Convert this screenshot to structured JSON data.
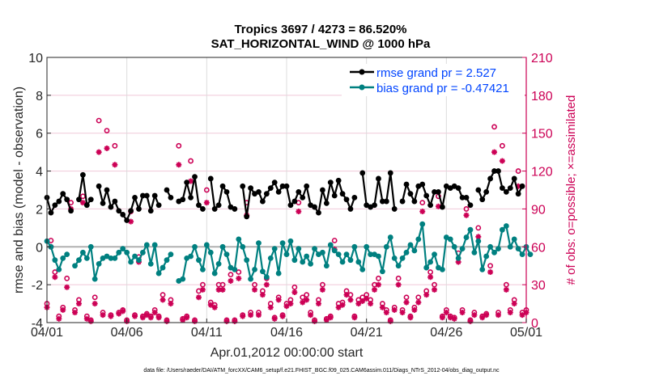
{
  "chart_data": {
    "type": "line",
    "title": [
      "Tropics 3697 / 4273 = 86.520%",
      "SAT_HORIZONTAL_WIND @ 1000 hPa"
    ],
    "xlabel": "Apr.01,2012 00:00:00 start",
    "ylabel": "rmse and bias (model - observation)",
    "ylabel_right": "# of obs: o=possible; ×=assimilated",
    "xlim_days": [
      0,
      30
    ],
    "x_ticks": [
      {
        "day": 0,
        "label": "04/01"
      },
      {
        "day": 5,
        "label": "04/06"
      },
      {
        "day": 10,
        "label": "04/11"
      },
      {
        "day": 15,
        "label": "04/16"
      },
      {
        "day": 20,
        "label": "04/21"
      },
      {
        "day": 25,
        "label": "04/26"
      },
      {
        "day": 30,
        "label": "05/01"
      }
    ],
    "ylim": [
      -4,
      10
    ],
    "y_ticks": [
      -4,
      -2,
      0,
      2,
      4,
      6,
      8,
      10
    ],
    "ylim_right": [
      0,
      210
    ],
    "y_ticks_right": [
      0,
      30,
      60,
      90,
      120,
      150,
      180,
      210
    ],
    "grid": true,
    "zero_line": true,
    "legend_position": "top-right",
    "x_step_days": 0.25,
    "series": [
      {
        "name": "rmse grand pr = 2.527",
        "color": "#000000",
        "values": [
          2.6,
          1.8,
          2.2,
          2.4,
          2.8,
          2.5,
          1.9,
          null,
          2.5,
          3.8,
          2.2,
          2.5,
          null,
          3.2,
          2.3,
          3.0,
          2.1,
          2.4,
          1.9,
          1.7,
          1.4,
          1.9,
          2.6,
          2.0,
          2.7,
          2.7,
          1.9,
          2.7,
          2.2,
          null,
          3.0,
          2.6,
          null,
          2.4,
          2.5,
          3.4,
          2.6,
          3.7,
          2.2,
          2.0,
          null,
          3.6,
          2.0,
          2.2,
          3.2,
          2.9,
          2.1,
          2.0,
          null,
          3.2,
          1.6,
          3.1,
          2.8,
          2.9,
          2.4,
          2.8,
          3.1,
          3.4,
          2.9,
          3.2,
          3.2,
          2.2,
          2.4,
          2.9,
          2.6,
          3.2,
          2.2,
          2.1,
          1.8,
          3.0,
          2.3,
          3.4,
          2.7,
          3.5,
          2.8,
          2.5,
          2.0,
          2.6,
          null,
          3.9,
          2.2,
          2.1,
          2.2,
          3.6,
          2.4,
          2.4,
          3.9,
          2.0,
          null,
          2.4,
          3.3,
          2.8,
          2.4,
          3.2,
          3.3,
          2.7,
          2.2,
          2.9,
          2.9,
          2.1,
          3.2,
          3.1,
          3.2,
          3.1,
          2.6,
          2.6,
          2.2,
          null,
          3.0,
          2.5,
          2.9,
          3.6,
          4.0,
          4.0,
          3.1,
          2.9,
          3.1,
          3.6,
          2.8,
          3.2
        ],
        "marker": "filled-circle"
      },
      {
        "name": "bias grand pr = -0.47421",
        "color": "#008080",
        "values": [
          0.3,
          0.0,
          -0.7,
          -1.2,
          -0.6,
          -0.4,
          null,
          -1.0,
          -0.7,
          -0.3,
          -0.6,
          0.0,
          -1.7,
          -0.9,
          -0.6,
          -0.5,
          -0.6,
          -0.6,
          -0.3,
          -0.1,
          -0.3,
          -0.8,
          -0.5,
          -0.7,
          -0.3,
          0.1,
          -0.9,
          0.1,
          -1.4,
          -1.1,
          -0.7,
          -0.4,
          null,
          -1.8,
          -1.7,
          -0.6,
          -0.5,
          0.0,
          -0.7,
          -1.2,
          0.1,
          -0.3,
          -1.4,
          -0.9,
          0.0,
          -0.4,
          -1.1,
          -1.2,
          0.4,
          0.0,
          -0.7,
          -1.7,
          -1.2,
          0.2,
          -1.3,
          -1.6,
          -0.6,
          -0.1,
          -1.4,
          0.2,
          -0.4,
          0.3,
          -0.7,
          -0.1,
          -0.8,
          -0.5,
          -0.9,
          -0.1,
          -0.4,
          -0.3,
          -1.0,
          0.1,
          -0.2,
          -0.4,
          -0.8,
          -0.4,
          -0.7,
          0.0,
          -0.8,
          -1.2,
          0.0,
          -0.4,
          -0.4,
          -0.5,
          -1.3,
          0.0,
          0.5,
          -0.6,
          -1.0,
          -0.6,
          -0.3,
          0.1,
          -0.2,
          0.4,
          1.2,
          -1.1,
          -0.8,
          -0.4,
          -1.1,
          -1.2,
          0.5,
          0.4,
          0.0,
          -0.6,
          -0.1,
          0.5,
          0.9,
          -0.3,
          0.3,
          -1.2,
          -0.5,
          0.0,
          -0.3,
          -0.1,
          0.9,
          1.1,
          0.0,
          0.4,
          -0.1,
          -0.4,
          0.0,
          -0.4
        ],
        "marker": "filled-circle"
      }
    ],
    "obs_counts": {
      "color": "#cc0055",
      "possible": [
        15,
        65,
        40,
        5,
        12,
        35,
        95,
        10,
        18,
        100,
        5,
        2,
        20,
        160,
        8,
        152,
        6,
        140,
        8,
        10,
        2,
        88,
        6,
        52,
        5,
        7,
        5,
        10,
        5,
        22,
        2,
        18,
        null,
        140,
        3,
        5,
        128,
        2,
        25,
        30,
        105,
        16,
        14,
        30,
        30,
        2,
        38,
        2,
        40,
        6,
        95,
        8,
        30,
        8,
        25,
        35,
        15,
        4,
        20,
        6,
        15,
        18,
        28,
        95,
        20,
        22,
        8,
        2,
        18,
        30,
        3,
        5,
        65,
        15,
        16,
        25,
        22,
        5,
        18,
        20,
        22,
        18,
        30,
        35,
        15,
        10,
        2,
        12,
        35,
        10,
        20,
        5,
        12,
        20,
        95,
        25,
        40,
        30,
        100,
        5,
        10,
        5,
        4,
        55,
        10,
        90,
        2,
        8,
        75,
        5,
        7,
        45,
        155,
        8,
        140,
        30,
        10,
        18,
        120,
        8,
        10
      ],
      "assimilated": [
        12,
        60,
        36,
        3,
        10,
        28,
        90,
        8,
        15,
        95,
        3,
        1,
        15,
        135,
        6,
        138,
        5,
        125,
        7,
        9,
        1,
        80,
        5,
        48,
        4,
        6,
        4,
        8,
        4,
        18,
        1,
        15,
        null,
        125,
        2,
        4,
        112,
        1,
        20,
        26,
        95,
        14,
        12,
        26,
        26,
        1,
        33,
        1,
        35,
        5,
        85,
        6,
        26,
        6,
        22,
        30,
        12,
        3,
        18,
        5,
        13,
        15,
        24,
        88,
        16,
        18,
        6,
        1,
        15,
        26,
        2,
        4,
        58,
        12,
        14,
        22,
        18,
        4,
        15,
        17,
        19,
        15,
        26,
        30,
        12,
        8,
        1,
        10,
        30,
        8,
        16,
        4,
        10,
        16,
        88,
        22,
        36,
        26,
        92,
        4,
        8,
        4,
        3,
        48,
        8,
        85,
        1,
        6,
        68,
        4,
        6,
        40,
        135,
        6,
        128,
        26,
        8,
        15,
        108,
        6,
        8
      ]
    }
  },
  "footer": "data file: /Users/raeder/DAI/ATM_forcXX/CAM6_setup/f.e21.FHIST_BGC.f09_025.CAM6assim.011/Diags_NTrS_2012-04/obs_diag_output.nc"
}
